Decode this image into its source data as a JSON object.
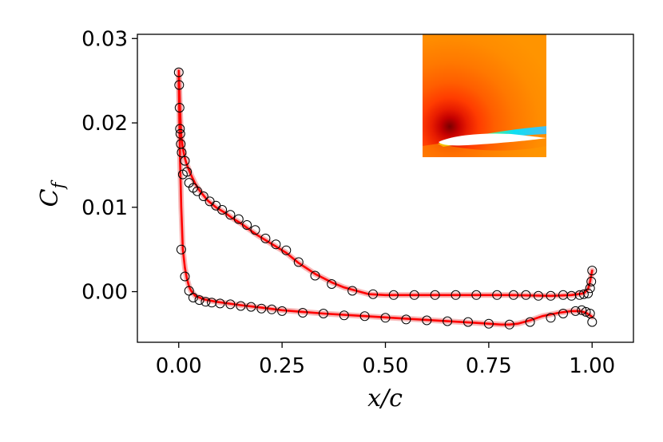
{
  "chart_data": {
    "type": "line",
    "xlabel": "x/c",
    "ylabel": "C_f",
    "ylabel_main": "C",
    "ylabel_sub": "f",
    "xlim": [
      -0.1,
      1.1
    ],
    "ylim": [
      -0.006,
      0.0305
    ],
    "x_ticks": [
      0.0,
      0.25,
      0.5,
      0.75,
      1.0
    ],
    "x_tick_labels": [
      "0.00",
      "0.25",
      "0.50",
      "0.75",
      "1.00"
    ],
    "y_ticks": [
      0.0,
      0.01,
      0.02,
      0.03
    ],
    "y_tick_labels": [
      "0.00",
      "0.01",
      "0.02",
      "0.03"
    ],
    "grid": false,
    "colors": {
      "line": "#ff0000",
      "band": "#f08080",
      "markers": "#000000"
    },
    "inset": {
      "type": "contour-image",
      "position": "top-right",
      "colors": [
        "#ff8c00",
        "#ff6a00",
        "#ff3c00",
        "#e01000",
        "#b00000",
        "#ffe600",
        "#7fff3f",
        "#00e5ff"
      ]
    },
    "series": [
      {
        "style": "line",
        "x": [
          0.0,
          0.002,
          0.004,
          0.006,
          0.01,
          0.015,
          0.02,
          0.03,
          0.04,
          0.05,
          0.07,
          0.09,
          0.11,
          0.13,
          0.15,
          0.17,
          0.19,
          0.21,
          0.23,
          0.26,
          0.29,
          0.33,
          0.37,
          0.4,
          0.43,
          0.46,
          0.5,
          0.55,
          0.6,
          0.7,
          0.8,
          0.9,
          0.95,
          0.98,
          0.99,
          0.995,
          1.0
        ],
        "y": [
          0.0262,
          0.023,
          0.0205,
          0.0185,
          0.017,
          0.0158,
          0.015,
          0.0138,
          0.0128,
          0.012,
          0.0108,
          0.01,
          0.0094,
          0.0087,
          0.0081,
          0.0074,
          0.0067,
          0.0061,
          0.0055,
          0.0046,
          0.0034,
          0.0021,
          0.0011,
          0.0005,
          0.0001,
          -0.0003,
          -0.0004,
          -0.0004,
          -0.0004,
          -0.0004,
          -0.0004,
          -0.0005,
          -0.0004,
          -0.0002,
          0.0003,
          0.0012,
          0.0025
        ]
      },
      {
        "style": "line",
        "x": [
          0.0,
          0.003,
          0.006,
          0.01,
          0.015,
          0.02,
          0.025,
          0.03,
          0.04,
          0.06,
          0.09,
          0.12,
          0.15,
          0.2,
          0.25,
          0.3,
          0.35,
          0.45,
          0.55,
          0.65,
          0.72,
          0.78,
          0.8,
          0.82,
          0.85,
          0.88,
          0.92,
          0.95,
          0.97,
          0.985,
          0.995,
          1.0
        ],
        "y": [
          0.0255,
          0.016,
          0.01,
          0.005,
          0.0028,
          0.0015,
          0.0006,
          0.0001,
          -0.0005,
          -0.0009,
          -0.0012,
          -0.0014,
          -0.0016,
          -0.0019,
          -0.0022,
          -0.0024,
          -0.0026,
          -0.0029,
          -0.0032,
          -0.0035,
          -0.0037,
          -0.0039,
          -0.0039,
          -0.0038,
          -0.0034,
          -0.0029,
          -0.0025,
          -0.0023,
          -0.0023,
          -0.0025,
          -0.0028,
          -0.003
        ]
      },
      {
        "style": "markers",
        "x": [
          0.0,
          0.001,
          0.002,
          0.003,
          0.004,
          0.005,
          0.007,
          0.01,
          0.015,
          0.02,
          0.025,
          0.035,
          0.045,
          0.06,
          0.075,
          0.09,
          0.105,
          0.125,
          0.145,
          0.165,
          0.185,
          0.21,
          0.235,
          0.26,
          0.29,
          0.33,
          0.37,
          0.42,
          0.47,
          0.52,
          0.57,
          0.62,
          0.67,
          0.72,
          0.77,
          0.81,
          0.84,
          0.87,
          0.9,
          0.93,
          0.95,
          0.97,
          0.98,
          0.99,
          0.995,
          0.998,
          1.0
        ],
        "y": [
          0.026,
          0.0245,
          0.0218,
          0.0193,
          0.0187,
          0.0175,
          0.0165,
          0.0139,
          0.0155,
          0.0142,
          0.0129,
          0.0123,
          0.0119,
          0.0113,
          0.0107,
          0.0102,
          0.0097,
          0.0091,
          0.0086,
          0.0079,
          0.0073,
          0.0063,
          0.0056,
          0.0049,
          0.0035,
          0.0019,
          0.0009,
          0.0001,
          -0.0003,
          -0.0004,
          -0.0004,
          -0.0004,
          -0.0004,
          -0.0004,
          -0.0004,
          -0.0004,
          -0.0004,
          -0.0005,
          -0.0005,
          -0.0004,
          -0.0005,
          -0.0004,
          -0.0003,
          -0.0002,
          0.0004,
          0.0012,
          0.0025
        ]
      },
      {
        "style": "markers",
        "x": [
          0.006,
          0.015,
          0.025,
          0.035,
          0.05,
          0.065,
          0.08,
          0.1,
          0.125,
          0.15,
          0.175,
          0.2,
          0.225,
          0.25,
          0.3,
          0.35,
          0.4,
          0.45,
          0.5,
          0.55,
          0.6,
          0.65,
          0.7,
          0.75,
          0.8,
          0.85,
          0.9,
          0.93,
          0.96,
          0.975,
          0.985,
          0.995,
          1.0
        ],
        "y": [
          0.005,
          0.0018,
          0.0001,
          -0.0007,
          -0.001,
          -0.0012,
          -0.0013,
          -0.0014,
          -0.0015,
          -0.0017,
          -0.0018,
          -0.002,
          -0.0021,
          -0.0023,
          -0.0025,
          -0.0026,
          -0.0028,
          -0.0029,
          -0.0031,
          -0.0033,
          -0.0034,
          -0.0035,
          -0.0036,
          -0.0038,
          -0.0039,
          -0.0036,
          -0.0031,
          -0.0026,
          -0.0023,
          -0.0022,
          -0.0024,
          -0.0026,
          -0.0036
        ]
      }
    ]
  }
}
